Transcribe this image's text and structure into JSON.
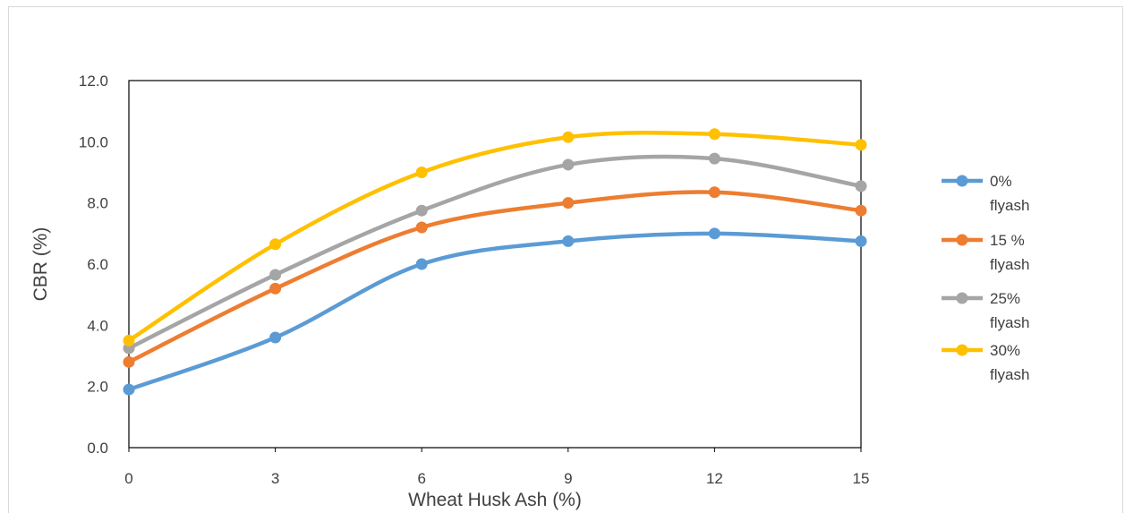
{
  "chart_data": {
    "type": "line",
    "smooth": true,
    "markers": true,
    "xlabel": "Wheat Husk Ash (%)",
    "ylabel": "CBR (%)",
    "x": [
      0,
      3,
      6,
      9,
      12,
      15
    ],
    "x_tick_labels": [
      "0",
      "3",
      "6",
      "9",
      "12",
      "15"
    ],
    "ylim": [
      0,
      12
    ],
    "y_tick_labels": [
      "0.0",
      "2.0",
      "4.0",
      "6.0",
      "8.0",
      "10.0",
      "12.0"
    ],
    "grid": false,
    "legend_position": "right",
    "series": [
      {
        "name": "0% flyash",
        "name_lines": [
          "0%",
          "flyash"
        ],
        "color": "#5B9BD5",
        "values": [
          1.9,
          3.6,
          6.0,
          6.75,
          7.0,
          6.75
        ]
      },
      {
        "name": "15 % flyash",
        "name_lines": [
          "15 %",
          "flyash"
        ],
        "color": "#ED7D31",
        "values": [
          2.8,
          5.2,
          7.2,
          8.0,
          8.35,
          7.75
        ]
      },
      {
        "name": "25% flyash",
        "name_lines": [
          "25%",
          "flyash"
        ],
        "color": "#A5A5A5",
        "values": [
          3.25,
          5.65,
          7.75,
          9.25,
          9.45,
          8.55
        ]
      },
      {
        "name": "30% flyash",
        "name_lines": [
          "30%",
          "flyash"
        ],
        "color": "#FFC000",
        "values": [
          3.5,
          6.65,
          9.0,
          10.15,
          10.25,
          9.9
        ]
      }
    ]
  }
}
